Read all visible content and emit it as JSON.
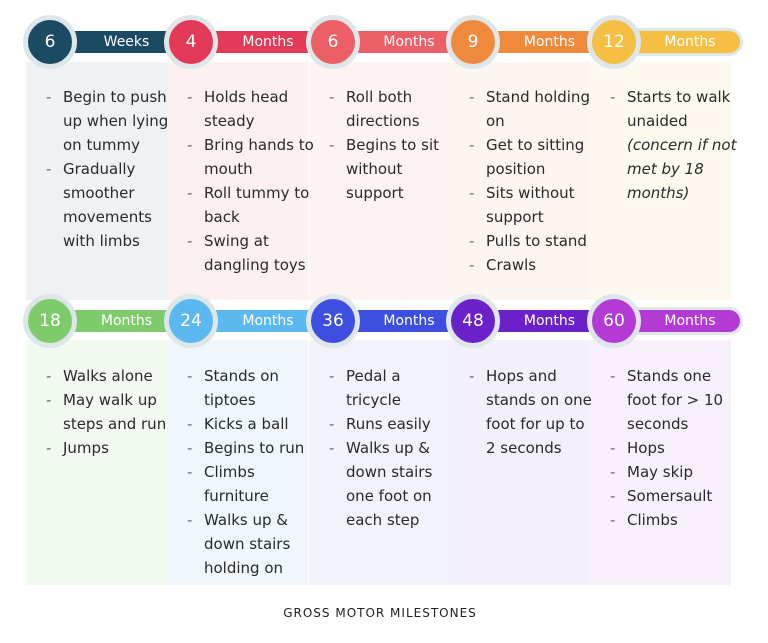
{
  "rows": [
    [
      {
        "number": "6",
        "unit": "Weeks",
        "color": "#1b4a63",
        "bg": "#eef2f4",
        "items": [
          "Begin to push up when lying on tummy",
          "Gradually smoother movements with limbs"
        ]
      },
      {
        "number": "4",
        "unit": "Months",
        "color": "#e23a57",
        "bg": "#fdf0f1",
        "items": [
          "Holds head steady",
          "Bring hands to mouth",
          "Roll tummy to back",
          "Swing at dangling toys"
        ]
      },
      {
        "number": "6",
        "unit": "Months",
        "color": "#ec5f66",
        "bg": "#fdf3f2",
        "items": [
          "Roll both directions",
          "Begins to sit without support"
        ]
      },
      {
        "number": "9",
        "unit": "Months",
        "color": "#ef8a3c",
        "bg": "#fdf5ef",
        "items": [
          "Stand holding on",
          "Get to sitting position",
          "Sits without support",
          "Pulls to stand",
          "Crawls"
        ]
      },
      {
        "number": "12",
        "unit": "Months",
        "color": "#f4bf42",
        "bg": "#fdf9ee",
        "items": [
          "Starts to walk unaided"
        ],
        "note": "(concern if not met by 18 months)"
      }
    ],
    [
      {
        "number": "18",
        "unit": "Months",
        "color": "#7ecb6b",
        "bg": "#f2f9f0",
        "items": [
          "Walks alone",
          "May walk up steps and run",
          "Jumps"
        ]
      },
      {
        "number": "24",
        "unit": "Months",
        "color": "#5bb8f0",
        "bg": "#eff6fc",
        "items": [
          "Stands on tiptoes",
          "Kicks a ball",
          "Begins to run",
          "Climbs furniture",
          "Walks up & down stairs holding on"
        ]
      },
      {
        "number": "36",
        "unit": "Months",
        "color": "#3e4fe0",
        "bg": "#f1f2fc",
        "items": [
          "Pedal a tricycle",
          "Runs easily",
          "Walks up & down stairs one foot on each step"
        ]
      },
      {
        "number": "48",
        "unit": "Months",
        "color": "#6a21c9",
        "bg": "#f3effb",
        "items": [
          "Hops and stands on one foot for up to 2 seconds"
        ]
      },
      {
        "number": "60",
        "unit": "Months",
        "color": "#b43ad6",
        "bg": "#f8f0fb",
        "items": [
          "Stands one foot for > 10 seconds",
          "Hops",
          "May skip",
          "Somersault",
          "Climbs"
        ]
      }
    ]
  ],
  "footer": "GROSS MOTOR MILESTONES"
}
